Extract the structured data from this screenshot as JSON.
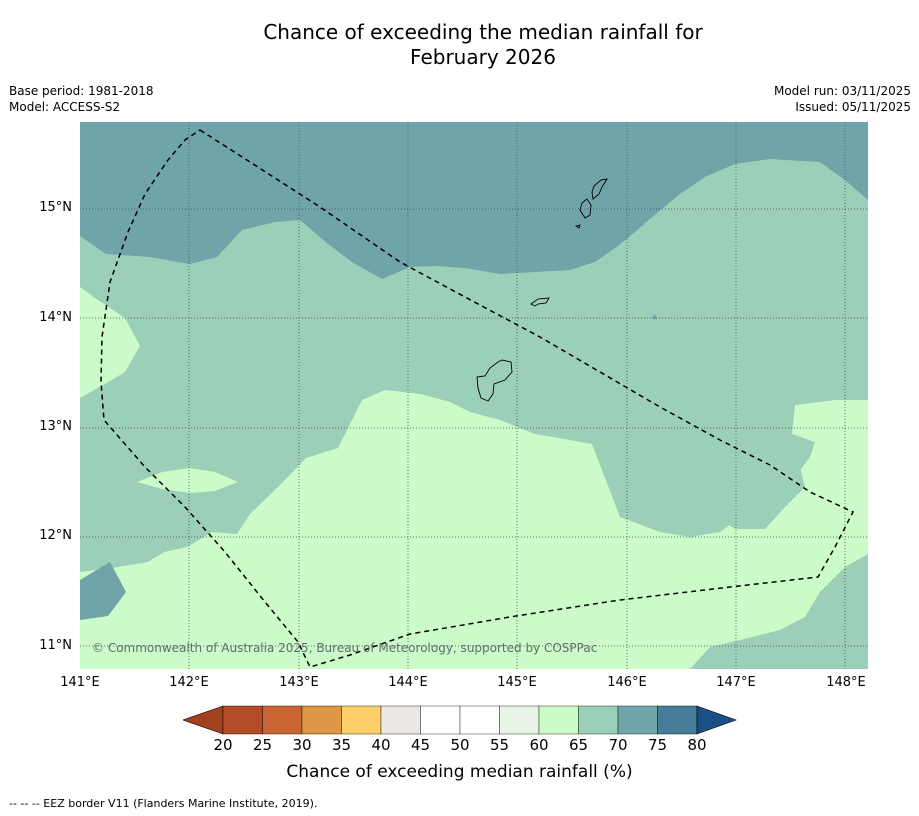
{
  "title_line1": "Chance of exceeding the median rainfall for",
  "title_line2": "February 2026",
  "meta": {
    "base_period": "Base period: 1981-2018",
    "model": "Model: ACCESS-S2",
    "model_run": "Model run: 03/11/2025",
    "issued": "Issued: 05/11/2025"
  },
  "map": {
    "lat_labels": [
      "15°N",
      "14°N",
      "13°N",
      "12°N",
      "11°N"
    ],
    "lon_labels": [
      "141°E",
      "142°E",
      "143°E",
      "144°E",
      "145°E",
      "146°E",
      "147°E",
      "148°E"
    ],
    "copyright": "© Commonwealth of Australia 2025, Bureau of Meteorology, supported by COSPPac"
  },
  "colorbar": {
    "ticks": [
      "20",
      "25",
      "30",
      "35",
      "40",
      "45",
      "50",
      "55",
      "60",
      "65",
      "70",
      "75",
      "80"
    ],
    "colors": [
      "#b34b26",
      "#cb6433",
      "#df9646",
      "#fdcf6a",
      "#ece8e4",
      "#ffffff",
      "#ffffff",
      "#e8f5e6",
      "#cbfbc8",
      "#9ccfb8",
      "#6fa4a8",
      "#457c98"
    ],
    "under_color": "#a3401f",
    "over_color": "#1c4f88",
    "label": "Chance of exceeding median rainfall (%)"
  },
  "footnote": "--  --  -- EEZ border V11 (Flanders Marine Institute, 2019)."
}
